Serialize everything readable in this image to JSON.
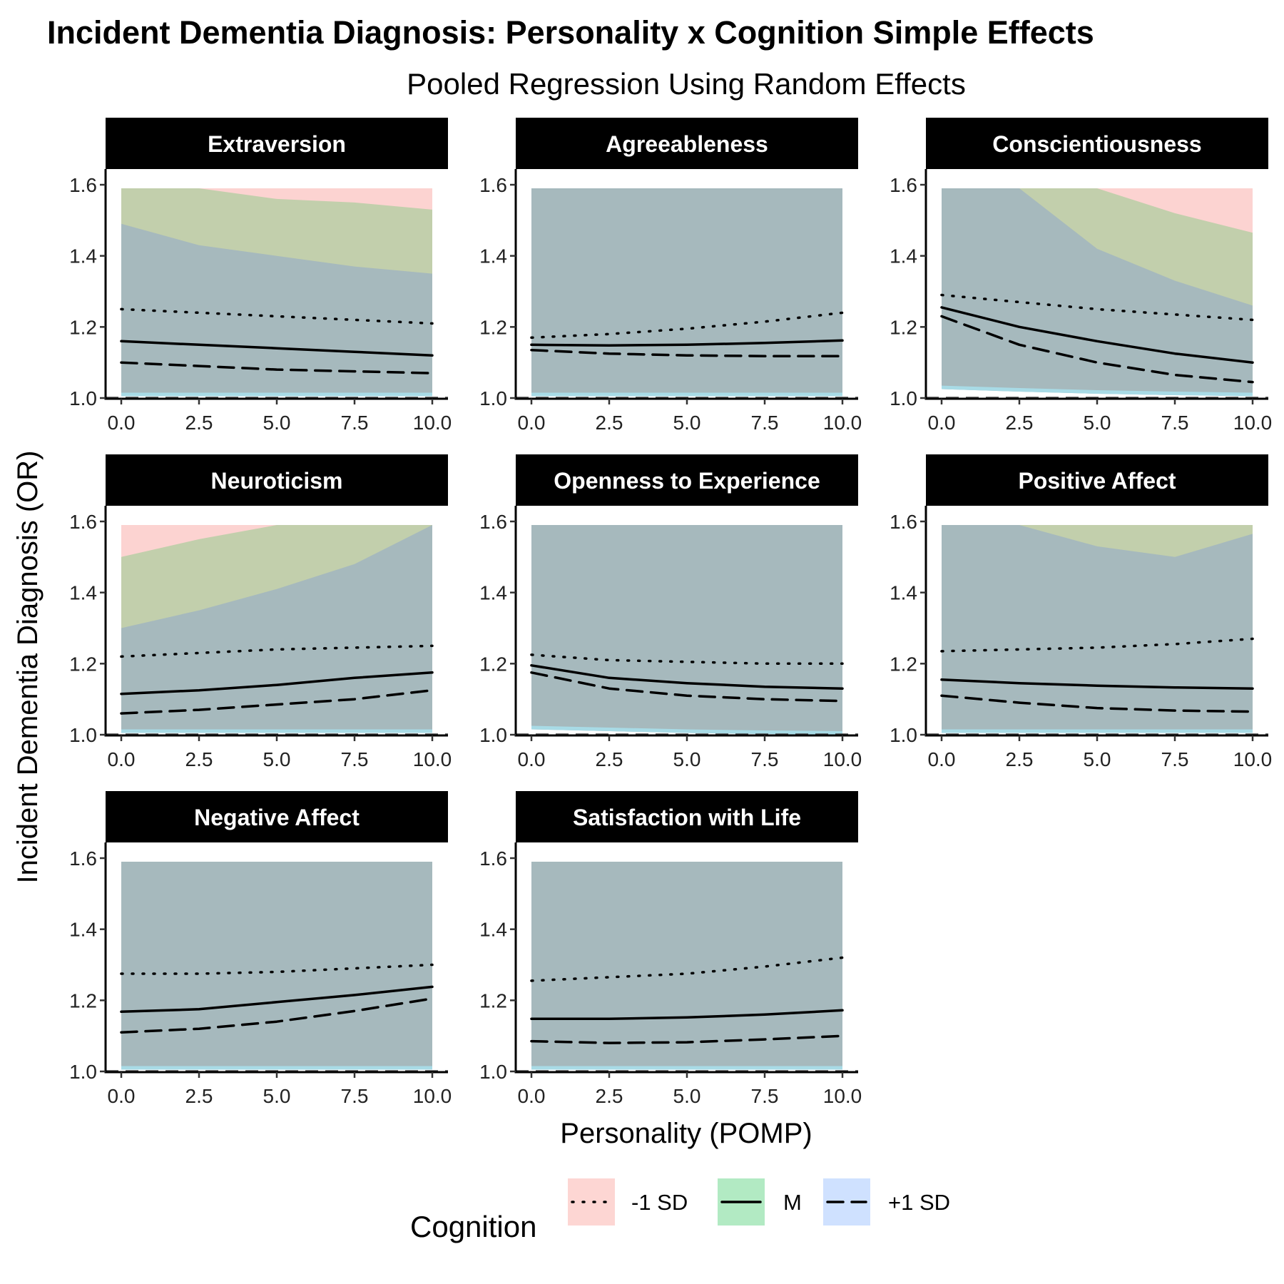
{
  "title": "Incident Dementia Diagnosis: Personality x Cognition Simple Effects",
  "subtitle": "Pooled Regression Using Random Effects",
  "xlabel": "Personality (POMP)",
  "ylabel": "Incident Dementia Diagnosis (OR)",
  "legend": {
    "title": "Cognition",
    "placement": "bottom",
    "items": [
      {
        "label": "-1 SD",
        "linetype": "dotted",
        "fill": "#f8766d"
      },
      {
        "label": "M",
        "linetype": "solid",
        "fill": "#00ba38"
      },
      {
        "label": "+1 SD",
        "linetype": "dashed",
        "fill": "#619cff"
      }
    ]
  },
  "colors": {
    "ribbon_low": "#fcd3d1",
    "ribbon_mid": "#c2cfac",
    "ribbon_high": "#a6b9bd",
    "ribbon_cyan": "#a8dbe6",
    "ribbon_lav": "#c9d2f5",
    "strip_bg": "#000000",
    "strip_text": "#ffffff",
    "reference_line": "#444444"
  },
  "chart_data": {
    "type": "line",
    "layout": "facet_wrap",
    "xlim": [
      0,
      10
    ],
    "ylim": [
      1.0,
      1.6
    ],
    "x_ticks": [
      "0.0",
      "2.5",
      "5.0",
      "7.5",
      "10.0"
    ],
    "y_ticks": [
      "1.0",
      "1.2",
      "1.4",
      "1.6"
    ],
    "reference_line_y": 1.0,
    "grid": false,
    "panels": [
      {
        "name": "Extraversion",
        "x": [
          0,
          2.5,
          5,
          7.5,
          10
        ],
        "series": [
          {
            "name": "-1 SD",
            "values": [
              1.25,
              1.24,
              1.23,
              1.22,
              1.21
            ]
          },
          {
            "name": "M",
            "values": [
              1.16,
              1.15,
              1.14,
              1.13,
              1.12
            ]
          },
          {
            "name": "+1 SD",
            "values": [
              1.1,
              1.09,
              1.08,
              1.075,
              1.07
            ]
          }
        ],
        "ribbons": [
          {
            "name": "-1 SD",
            "lower": [
              1.02,
              1.02,
              1.02,
              1.02,
              1.02
            ],
            "upper": [
              1.59,
              1.59,
              1.59,
              1.59,
              1.59
            ]
          },
          {
            "name": "M",
            "lower": [
              1.015,
              1.015,
              1.015,
              1.015,
              1.015
            ],
            "upper": [
              1.59,
              1.59,
              1.56,
              1.55,
              1.53
            ]
          },
          {
            "name": "+1 SD",
            "lower": [
              1.005,
              1.005,
              1.005,
              1.005,
              1.005
            ],
            "upper": [
              1.49,
              1.43,
              1.4,
              1.37,
              1.35
            ]
          }
        ]
      },
      {
        "name": "Agreeableness",
        "x": [
          0,
          2.5,
          5,
          7.5,
          10
        ],
        "series": [
          {
            "name": "-1 SD",
            "values": [
              1.17,
              1.18,
              1.195,
              1.215,
              1.24
            ]
          },
          {
            "name": "M",
            "values": [
              1.15,
              1.148,
              1.15,
              1.155,
              1.162
            ]
          },
          {
            "name": "+1 SD",
            "values": [
              1.135,
              1.125,
              1.12,
              1.118,
              1.118
            ]
          }
        ],
        "ribbons": [
          {
            "name": "-1 SD",
            "lower": [
              1.01,
              1.01,
              1.01,
              1.01,
              1.01
            ],
            "upper": [
              1.59,
              1.59,
              1.59,
              1.59,
              1.59
            ]
          },
          {
            "name": "M",
            "lower": [
              1.008,
              1.008,
              1.008,
              1.008,
              1.008
            ],
            "upper": [
              1.59,
              1.59,
              1.59,
              1.59,
              1.59
            ]
          },
          {
            "name": "+1 SD",
            "lower": [
              1.005,
              1.005,
              1.005,
              1.005,
              1.005
            ],
            "upper": [
              1.59,
              1.59,
              1.59,
              1.59,
              1.59
            ]
          }
        ]
      },
      {
        "name": "Conscientiousness",
        "x": [
          0,
          2.5,
          5,
          7.5,
          10
        ],
        "series": [
          {
            "name": "-1 SD",
            "values": [
              1.29,
              1.27,
              1.25,
              1.235,
              1.22
            ]
          },
          {
            "name": "M",
            "values": [
              1.255,
              1.2,
              1.16,
              1.125,
              1.1
            ]
          },
          {
            "name": "+1 SD",
            "values": [
              1.23,
              1.15,
              1.1,
              1.065,
              1.045
            ]
          }
        ],
        "ribbons": [
          {
            "name": "-1 SD",
            "lower": [
              1.04,
              1.035,
              1.03,
              1.025,
              1.02
            ],
            "upper": [
              1.59,
              1.59,
              1.59,
              1.59,
              1.59
            ]
          },
          {
            "name": "M",
            "lower": [
              1.035,
              1.03,
              1.025,
              1.018,
              1.012
            ],
            "upper": [
              1.59,
              1.59,
              1.59,
              1.52,
              1.465
            ]
          },
          {
            "name": "+1 SD",
            "lower": [
              1.025,
              1.018,
              1.012,
              1.008,
              1.005
            ],
            "upper": [
              1.59,
              1.59,
              1.42,
              1.33,
              1.26
            ]
          }
        ]
      },
      {
        "name": "Neuroticism",
        "x": [
          0,
          2.5,
          5,
          7.5,
          10
        ],
        "series": [
          {
            "name": "-1 SD",
            "values": [
              1.22,
              1.23,
              1.24,
              1.245,
              1.25
            ]
          },
          {
            "name": "M",
            "values": [
              1.115,
              1.125,
              1.14,
              1.16,
              1.175
            ]
          },
          {
            "name": "+1 SD",
            "values": [
              1.06,
              1.07,
              1.085,
              1.1,
              1.125
            ]
          }
        ],
        "ribbons": [
          {
            "name": "-1 SD",
            "lower": [
              1.025,
              1.025,
              1.025,
              1.025,
              1.025
            ],
            "upper": [
              1.59,
              1.59,
              1.59,
              1.59,
              1.59
            ]
          },
          {
            "name": "M",
            "lower": [
              1.015,
              1.015,
              1.015,
              1.015,
              1.015
            ],
            "upper": [
              1.5,
              1.55,
              1.59,
              1.59,
              1.59
            ]
          },
          {
            "name": "+1 SD",
            "lower": [
              1.005,
              1.005,
              1.005,
              1.005,
              1.005
            ],
            "upper": [
              1.3,
              1.35,
              1.41,
              1.48,
              1.59
            ]
          }
        ]
      },
      {
        "name": "Openness to Experience",
        "x": [
          0,
          2.5,
          5,
          7.5,
          10
        ],
        "series": [
          {
            "name": "-1 SD",
            "values": [
              1.225,
              1.21,
              1.205,
              1.2,
              1.2
            ]
          },
          {
            "name": "M",
            "values": [
              1.195,
              1.16,
              1.145,
              1.135,
              1.13
            ]
          },
          {
            "name": "+1 SD",
            "values": [
              1.175,
              1.13,
              1.11,
              1.1,
              1.095
            ]
          }
        ],
        "ribbons": [
          {
            "name": "-1 SD",
            "lower": [
              1.03,
              1.025,
              1.02,
              1.01,
              1.005
            ],
            "upper": [
              1.59,
              1.59,
              1.59,
              1.59,
              1.59
            ]
          },
          {
            "name": "M",
            "lower": [
              1.022,
              1.018,
              1.012,
              1.005,
              1.002
            ],
            "upper": [
              1.59,
              1.59,
              1.59,
              1.59,
              1.59
            ]
          },
          {
            "name": "+1 SD",
            "lower": [
              1.015,
              1.01,
              1.005,
              1.002,
              1.0
            ],
            "upper": [
              1.59,
              1.59,
              1.59,
              1.59,
              1.59
            ]
          }
        ]
      },
      {
        "name": "Positive Affect",
        "x": [
          0,
          2.5,
          5,
          7.5,
          10
        ],
        "series": [
          {
            "name": "-1 SD",
            "values": [
              1.235,
              1.24,
              1.245,
              1.255,
              1.27
            ]
          },
          {
            "name": "M",
            "values": [
              1.155,
              1.145,
              1.138,
              1.133,
              1.13
            ]
          },
          {
            "name": "+1 SD",
            "values": [
              1.11,
              1.09,
              1.075,
              1.068,
              1.065
            ]
          }
        ],
        "ribbons": [
          {
            "name": "-1 SD",
            "lower": [
              1.01,
              1.01,
              1.01,
              1.01,
              1.01
            ],
            "upper": [
              1.59,
              1.59,
              1.59,
              1.59,
              1.59
            ]
          },
          {
            "name": "M",
            "lower": [
              1.008,
              1.008,
              1.008,
              1.008,
              1.008
            ],
            "upper": [
              1.59,
              1.59,
              1.59,
              1.59,
              1.59
            ]
          },
          {
            "name": "+1 SD",
            "lower": [
              1.005,
              1.005,
              1.005,
              1.005,
              1.005
            ],
            "upper": [
              1.59,
              1.59,
              1.53,
              1.5,
              1.565
            ]
          }
        ]
      },
      {
        "name": "Negative Affect",
        "x": [
          0,
          2.5,
          5,
          7.5,
          10
        ],
        "series": [
          {
            "name": "-1 SD",
            "values": [
              1.275,
              1.275,
              1.28,
              1.29,
              1.3
            ]
          },
          {
            "name": "M",
            "values": [
              1.168,
              1.175,
              1.195,
              1.215,
              1.238
            ]
          },
          {
            "name": "+1 SD",
            "values": [
              1.11,
              1.12,
              1.14,
              1.17,
              1.205
            ]
          }
        ],
        "ribbons": [
          {
            "name": "-1 SD",
            "lower": [
              1.01,
              1.01,
              1.01,
              1.01,
              1.01
            ],
            "upper": [
              1.59,
              1.59,
              1.59,
              1.59,
              1.59
            ]
          },
          {
            "name": "M",
            "lower": [
              1.008,
              1.008,
              1.008,
              1.008,
              1.008
            ],
            "upper": [
              1.59,
              1.59,
              1.59,
              1.59,
              1.59
            ]
          },
          {
            "name": "+1 SD",
            "lower": [
              1.005,
              1.005,
              1.005,
              1.005,
              1.005
            ],
            "upper": [
              1.59,
              1.59,
              1.59,
              1.59,
              1.59
            ]
          }
        ]
      },
      {
        "name": "Satisfaction with Life",
        "x": [
          0,
          2.5,
          5,
          7.5,
          10
        ],
        "series": [
          {
            "name": "-1 SD",
            "values": [
              1.255,
              1.265,
              1.275,
              1.295,
              1.32
            ]
          },
          {
            "name": "M",
            "values": [
              1.148,
              1.148,
              1.152,
              1.16,
              1.172
            ]
          },
          {
            "name": "+1 SD",
            "values": [
              1.085,
              1.08,
              1.082,
              1.09,
              1.1
            ]
          }
        ],
        "ribbons": [
          {
            "name": "-1 SD",
            "lower": [
              1.01,
              1.01,
              1.01,
              1.01,
              1.01
            ],
            "upper": [
              1.59,
              1.59,
              1.59,
              1.59,
              1.59
            ]
          },
          {
            "name": "M",
            "lower": [
              1.008,
              1.008,
              1.008,
              1.008,
              1.008
            ],
            "upper": [
              1.59,
              1.59,
              1.59,
              1.59,
              1.59
            ]
          },
          {
            "name": "+1 SD",
            "lower": [
              1.005,
              1.005,
              1.005,
              1.005,
              1.005
            ],
            "upper": [
              1.59,
              1.59,
              1.59,
              1.59,
              1.59
            ]
          }
        ]
      }
    ]
  }
}
